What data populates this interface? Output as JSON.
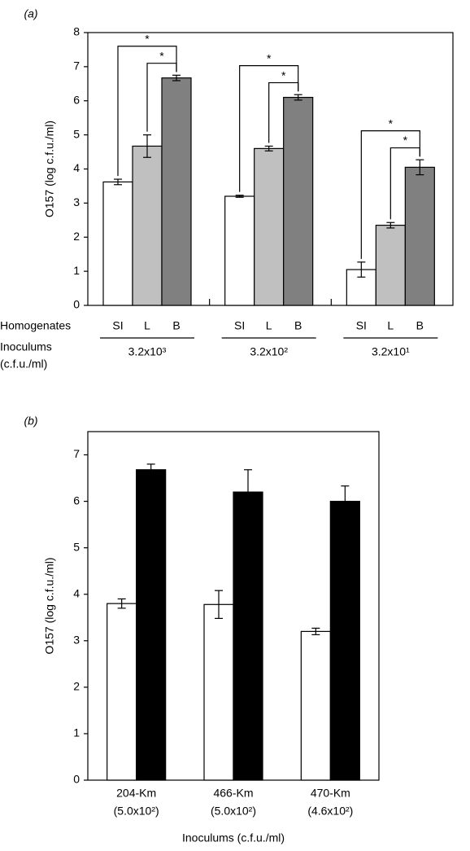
{
  "chart_data": [
    {
      "type": "grouped-bar",
      "panel_label": "(a)",
      "ylabel": "O157 (log c.f.u./ml)",
      "row_label": "Homogenates",
      "group_label": "Inoculums",
      "group_label_unit": "(c.f.u./ml)",
      "categories": [
        "3.2x10³",
        "3.2x10²",
        "3.2x10¹"
      ],
      "series": [
        {
          "name": "SI",
          "color": "#ffffff",
          "values": [
            3.62,
            3.2,
            1.05
          ],
          "errors": [
            0.08,
            0.03,
            0.22
          ]
        },
        {
          "name": "L",
          "color": "#c0c0c0",
          "values": [
            4.67,
            4.6,
            2.35
          ],
          "errors": [
            0.33,
            0.07,
            0.08
          ]
        },
        {
          "name": "B",
          "color": "#808080",
          "values": [
            6.67,
            6.1,
            4.05
          ],
          "errors": [
            0.08,
            0.08,
            0.22
          ]
        }
      ],
      "annotations": [
        "*",
        "*",
        "*",
        "*",
        "*",
        "*"
      ],
      "ylim": [
        0,
        8
      ],
      "yticks": [
        0,
        1,
        2,
        3,
        4,
        5,
        6,
        7,
        8
      ]
    },
    {
      "type": "grouped-bar",
      "panel_label": "(b)",
      "ylabel": "O157 (log c.f.u./ml)",
      "xlabel": "Inoculums (c.f.u./ml)",
      "categories": [
        "204-Km",
        "466-Km",
        "470-Km"
      ],
      "category_sublabels": [
        "(5.0x10²)",
        "(5.0x10²)",
        "(4.6x10²)"
      ],
      "series": [
        {
          "color": "#ffffff",
          "values": [
            3.8,
            3.78,
            3.2
          ],
          "errors": [
            0.1,
            0.3,
            0.07
          ]
        },
        {
          "color": "#000000",
          "values": [
            6.68,
            6.2,
            6.0
          ],
          "errors": [
            0.12,
            0.48,
            0.33
          ]
        }
      ],
      "ylim": [
        0,
        7.5
      ],
      "yticks": [
        0,
        1,
        2,
        3,
        4,
        5,
        6,
        7
      ]
    }
  ]
}
